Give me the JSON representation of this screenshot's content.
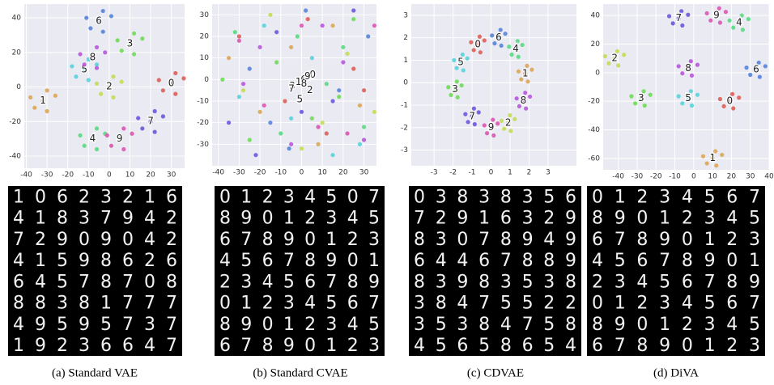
{
  "chart_data": [
    {
      "type": "scatter",
      "caption": "(a) Standard VAE",
      "xlim": [
        -41,
        36.4
      ],
      "ylim": [
        -47,
        48
      ],
      "xticks": [
        -40,
        -30,
        -20,
        -10,
        0,
        10,
        20,
        30
      ],
      "yticks": [
        -40,
        -20,
        0,
        20,
        40
      ],
      "grid": true,
      "series": [
        {
          "name": "0",
          "color": "#db5f57",
          "x": [
            30,
            36,
            24,
            32,
            26,
            32
          ],
          "y": [
            2,
            5,
            4,
            -4,
            -2,
            8
          ]
        },
        {
          "name": "1",
          "color": "#dba657",
          "x": [
            -32,
            -26,
            -38,
            -30,
            -36,
            -30
          ],
          "y": [
            -8,
            -5,
            -6,
            -14,
            -12,
            -2
          ]
        },
        {
          "name": "2",
          "color": "#c3db57",
          "x": [
            0,
            6,
            -6,
            2,
            -4,
            2
          ],
          "y": [
            0,
            3,
            2,
            -6,
            -4,
            6
          ]
        },
        {
          "name": "3",
          "color": "#6edb57",
          "x": [
            10,
            16,
            4,
            12,
            6,
            12
          ],
          "y": [
            25,
            28,
            27,
            19,
            21,
            31
          ]
        },
        {
          "name": "4",
          "color": "#57db80",
          "x": [
            -8,
            -2,
            -14,
            -6,
            -12,
            -6
          ],
          "y": [
            -30,
            -27,
            -28,
            -36,
            -34,
            -24
          ]
        },
        {
          "name": "5",
          "color": "#57d3db",
          "x": [
            -12,
            -6,
            -18,
            -10,
            -16,
            -10
          ],
          "y": [
            10,
            13,
            12,
            4,
            6,
            16
          ]
        },
        {
          "name": "6",
          "color": "#5784db",
          "x": [
            -5,
            1,
            -11,
            -3,
            -9,
            -3
          ],
          "y": [
            38,
            41,
            40,
            32,
            34,
            44
          ]
        },
        {
          "name": "7",
          "color": "#6e57db",
          "x": [
            20,
            26,
            14,
            22,
            16,
            22
          ],
          "y": [
            -20,
            -17,
            -18,
            -26,
            -24,
            -14
          ]
        },
        {
          "name": "8",
          "color": "#b857db",
          "x": [
            -8,
            -2,
            -14,
            -6,
            -12,
            -6
          ],
          "y": [
            17,
            20,
            19,
            11,
            13,
            23
          ]
        },
        {
          "name": "9",
          "color": "#db57b2",
          "x": [
            5,
            11,
            -1,
            7,
            1,
            7
          ],
          "y": [
            -30,
            -27,
            -28,
            -36,
            -34,
            -24
          ]
        }
      ],
      "samples": [
        "10623216",
        "41837942",
        "72909042",
        "41598626",
        "64578708",
        "88381777",
        "49595737",
        "19236647"
      ]
    },
    {
      "type": "scatter",
      "caption": "(b) Standard CVAE",
      "xlim": [
        -43,
        36
      ],
      "ylim": [
        -40,
        35
      ],
      "xticks": [
        -40,
        -30,
        -20,
        -10,
        0,
        10,
        20,
        30
      ],
      "yticks": [
        -30,
        -20,
        -10,
        0,
        10,
        20,
        30
      ],
      "grid": true,
      "series": [
        {
          "name": "0",
          "color": "#db5f57",
          "x": [
            -30,
            12,
            25,
            -8,
            3,
            30
          ],
          "y": [
            20,
            -25,
            5,
            -10,
            28,
            -5
          ]
        },
        {
          "name": "1",
          "color": "#dba657",
          "x": [
            -20,
            -35,
            15,
            8,
            28,
            -5
          ],
          "y": [
            -15,
            10,
            25,
            -30,
            -12,
            15
          ]
        },
        {
          "name": "2",
          "color": "#c3db57",
          "x": [
            10,
            -15,
            -28,
            22,
            0,
            35
          ],
          "y": [
            -20,
            30,
            -5,
            12,
            -32,
            -15
          ]
        },
        {
          "name": "3",
          "color": "#6edb57",
          "x": [
            25,
            -25,
            5,
            -12,
            18,
            -38
          ],
          "y": [
            28,
            -28,
            -18,
            8,
            -8,
            0
          ]
        },
        {
          "name": "4",
          "color": "#57db80",
          "x": [
            -10,
            20,
            -32,
            30,
            -2,
            12
          ],
          "y": [
            -25,
            15,
            22,
            -22,
            20,
            -2
          ]
        },
        {
          "name": "5",
          "color": "#57d3db",
          "x": [
            5,
            -30,
            28,
            -18,
            15,
            -5
          ],
          "y": [
            10,
            -8,
            -30,
            25,
            -35,
            -18
          ]
        },
        {
          "name": "6",
          "color": "#5784db",
          "x": [
            -25,
            32,
            -6,
            18,
            -15,
            2
          ],
          "y": [
            5,
            20,
            -32,
            -5,
            -20,
            32
          ]
        },
        {
          "name": "7",
          "color": "#6e57db",
          "x": [
            15,
            -12,
            -35,
            0,
            25,
            -22
          ],
          "y": [
            -10,
            22,
            -20,
            -15,
            32,
            -35
          ]
        },
        {
          "name": "8",
          "color": "#b857db",
          "x": [
            -5,
            30,
            -20,
            10,
            -28,
            20
          ],
          "y": [
            -30,
            -28,
            15,
            25,
            -2,
            8
          ]
        },
        {
          "name": "9",
          "color": "#db57b2",
          "x": [
            0,
            -18,
            22,
            -30,
            8,
            35
          ],
          "y": [
            25,
            -12,
            -25,
            18,
            -22,
            25
          ]
        }
      ],
      "samples": [
        "01234507",
        "89012345",
        "67890123",
        "45678901",
        "23456789",
        "01234567",
        "89012345",
        "67890123"
      ]
    },
    {
      "type": "scatter",
      "caption": "(c) CDVAE",
      "xlim": [
        -4.2,
        4.5
      ],
      "ylim": [
        -3.7,
        3.5
      ],
      "xticks": [
        -3,
        -2,
        -1,
        0,
        1,
        2,
        3
      ],
      "yticks": [
        -3,
        -2,
        -1,
        0,
        1,
        2,
        3
      ],
      "grid": true,
      "series": [
        {
          "name": "0",
          "color": "#db5f57",
          "x": [
            -0.7,
            -0.35,
            -1.05,
            -0.56,
            -0.91,
            -0.6
          ],
          "y": [
            1.7,
            1.88,
            1.8,
            1.35,
            1.45,
            2.05
          ]
        },
        {
          "name": "1",
          "color": "#dba657",
          "x": [
            1.8,
            2.15,
            1.45,
            1.94,
            1.59,
            1.9
          ],
          "y": [
            0.4,
            0.58,
            0.5,
            0.05,
            0.15,
            0.75
          ]
        },
        {
          "name": "2",
          "color": "#c3db57",
          "x": [
            0.9,
            1.25,
            0.55,
            1.04,
            0.69,
            1.0
          ],
          "y": [
            -1.8,
            -1.62,
            -1.7,
            -2.15,
            -2.05,
            -1.45
          ]
        },
        {
          "name": "3",
          "color": "#6edb57",
          "x": [
            -1.9,
            -1.55,
            -2.25,
            -1.76,
            -2.11,
            -1.8
          ],
          "y": [
            -0.3,
            -0.12,
            -0.2,
            -0.65,
            -0.55,
            0.05
          ]
        },
        {
          "name": "4",
          "color": "#57db80",
          "x": [
            1.3,
            1.65,
            0.95,
            1.44,
            1.09,
            1.4
          ],
          "y": [
            1.5,
            1.68,
            1.6,
            1.15,
            1.25,
            1.85
          ]
        },
        {
          "name": "5",
          "color": "#57d3db",
          "x": [
            -1.6,
            -1.25,
            -1.95,
            -1.46,
            -1.81,
            -1.5
          ],
          "y": [
            0.9,
            1.08,
            1.0,
            0.55,
            0.65,
            1.25
          ]
        },
        {
          "name": "6",
          "color": "#5784db",
          "x": [
            0.4,
            0.75,
            0.05,
            0.54,
            0.19,
            0.5
          ],
          "y": [
            2.0,
            2.18,
            2.1,
            1.65,
            1.75,
            2.35
          ]
        },
        {
          "name": "7",
          "color": "#6e57db",
          "x": [
            -1,
            -0.65,
            -1.35,
            -0.86,
            -1.21,
            -0.9
          ],
          "y": [
            -1.5,
            -1.32,
            -1.4,
            -1.85,
            -1.75,
            -1.15
          ]
        },
        {
          "name": "8",
          "color": "#b857db",
          "x": [
            1.7,
            2.05,
            1.35,
            1.84,
            1.49,
            1.8
          ],
          "y": [
            -0.8,
            -0.62,
            -0.7,
            -1.15,
            -1.05,
            -0.45
          ]
        },
        {
          "name": "9",
          "color": "#db57b2",
          "x": [
            0,
            0.35,
            -0.35,
            0.14,
            -0.21,
            0.1
          ],
          "y": [
            -2,
            -1.82,
            -1.9,
            -2.35,
            -2.25,
            -1.65
          ]
        }
      ],
      "samples": [
        "03838356",
        "72916329",
        "83078949",
        "64467889",
        "83983538",
        "38475522",
        "35384758",
        "45658654"
      ]
    },
    {
      "type": "scatter",
      "caption": "(d) DiVA",
      "xlim": [
        -48,
        40
      ],
      "ylim": [
        -68,
        48
      ],
      "xticks": [
        -40,
        -30,
        -20,
        -10,
        0,
        10,
        20,
        30,
        40
      ],
      "yticks": [
        -60,
        -40,
        -20,
        0,
        20,
        40
      ],
      "grid": true,
      "series": [
        {
          "name": "0",
          "color": "#db5f57",
          "x": [
            19,
            24,
            14,
            21,
            16,
            20.5
          ],
          "y": [
            -20,
            -17.5,
            -18.5,
            -25,
            -23.5,
            -15
          ]
        },
        {
          "name": "1",
          "color": "#dba657",
          "x": [
            10,
            15,
            5,
            12,
            7,
            11.5
          ],
          "y": [
            -60,
            -57.5,
            -58.5,
            -65,
            -63.5,
            -55
          ]
        },
        {
          "name": "2",
          "color": "#c3db57",
          "x": [
            -42,
            -37,
            -47,
            -40,
            -45,
            -40.5
          ],
          "y": [
            10,
            12.5,
            11.5,
            5,
            6.5,
            15
          ]
        },
        {
          "name": "3",
          "color": "#6edb57",
          "x": [
            -28,
            -23,
            -33,
            -26,
            -31,
            -26.5
          ],
          "y": [
            -18,
            -15.5,
            -16.5,
            -23,
            -21.5,
            -13
          ]
        },
        {
          "name": "4",
          "color": "#57db80",
          "x": [
            24,
            29,
            19,
            26,
            21,
            25.5
          ],
          "y": [
            35,
            37.5,
            36.5,
            30,
            31.5,
            40
          ]
        },
        {
          "name": "5",
          "color": "#57d3db",
          "x": [
            -3,
            2,
            -8,
            -1,
            -6,
            -1.5
          ],
          "y": [
            -18,
            -15.5,
            -16.5,
            -23,
            -21.5,
            -13
          ]
        },
        {
          "name": "6",
          "color": "#5784db",
          "x": [
            33,
            38,
            28,
            35,
            30,
            34.5
          ],
          "y": [
            2,
            4.5,
            3.5,
            -3,
            -1.5,
            7
          ]
        },
        {
          "name": "7",
          "color": "#6e57db",
          "x": [
            -8,
            -3,
            -13,
            -6,
            -11,
            -6.5
          ],
          "y": [
            38,
            40.5,
            39.5,
            33,
            34.5,
            43
          ]
        },
        {
          "name": "8",
          "color": "#b857db",
          "x": [
            -3,
            2,
            -8,
            -1,
            -6,
            -1.5
          ],
          "y": [
            3,
            5.5,
            4.5,
            -2,
            -0.5,
            8
          ]
        },
        {
          "name": "9",
          "color": "#db57b2",
          "x": [
            12,
            17,
            7,
            14,
            9,
            13.5
          ],
          "y": [
            40,
            42.5,
            41.5,
            35,
            36.5,
            45
          ]
        }
      ],
      "samples": [
        "01234567",
        "89012345",
        "67890123",
        "45678901",
        "23456789",
        "01234567",
        "89012345",
        "67890123"
      ]
    }
  ]
}
